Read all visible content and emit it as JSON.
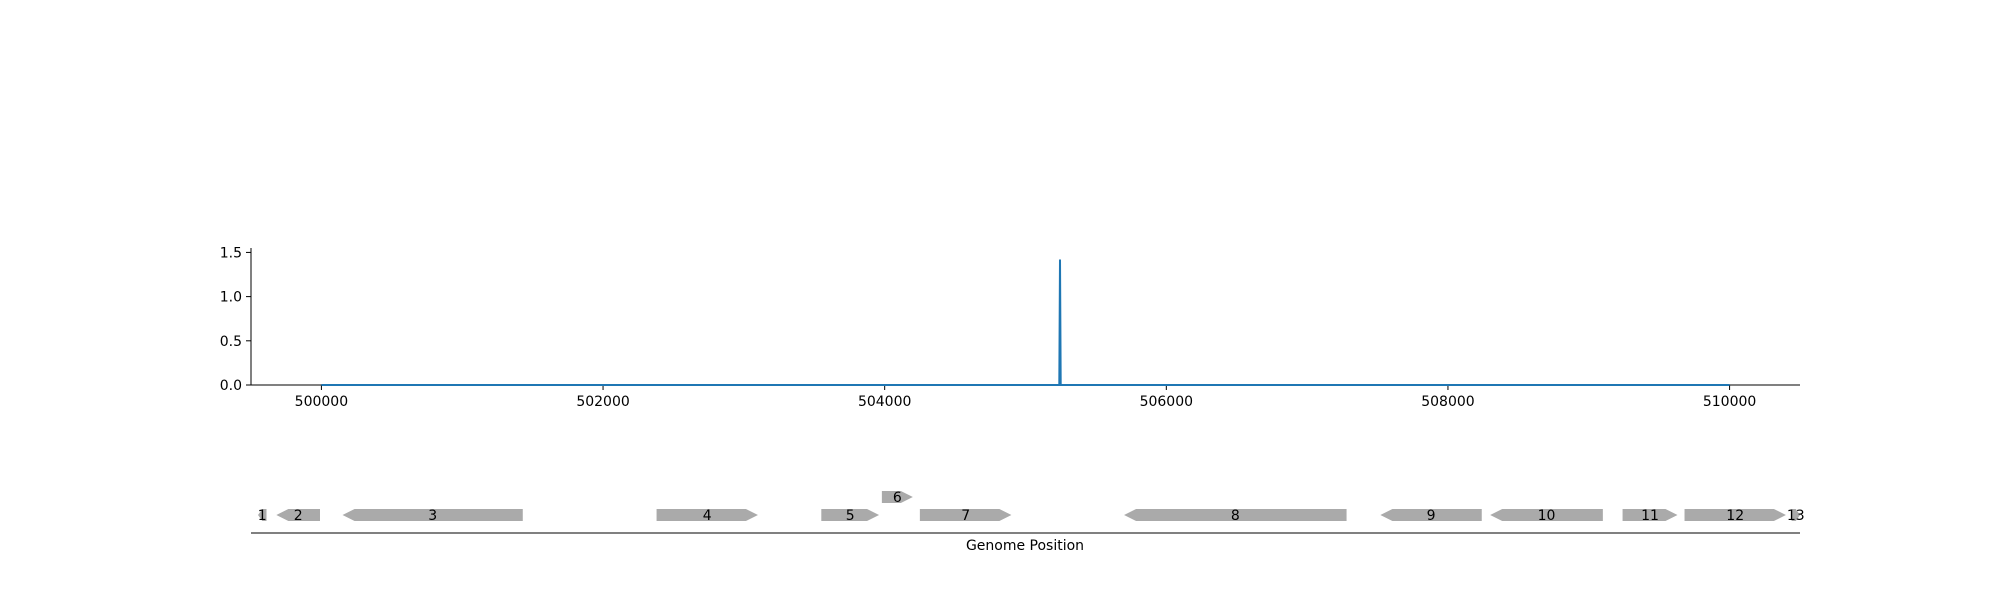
{
  "chart_data": {
    "type": "line",
    "title": "",
    "xlabel": "Genome Position",
    "ylabel": "",
    "xlim": [
      499500,
      510500
    ],
    "ylim": [
      0,
      1.55
    ],
    "x_ticks": [
      500000,
      502000,
      504000,
      506000,
      508000,
      510000
    ],
    "y_ticks": [
      "0.0",
      "0.5",
      "1.0",
      "1.5"
    ],
    "grid": false,
    "series": [
      {
        "name": "",
        "color": "#1f77b4",
        "points": [
          [
            500000,
            0
          ],
          [
            505240,
            0
          ],
          [
            505245,
            1.42
          ],
          [
            505250,
            0
          ],
          [
            510000,
            0
          ]
        ]
      }
    ],
    "genes": [
      {
        "label": "1",
        "start": 499550,
        "end": 499610,
        "strand": "-"
      },
      {
        "label": "2",
        "start": 499680,
        "end": 499990,
        "strand": "-"
      },
      {
        "label": "3",
        "start": 500150,
        "end": 501430,
        "strand": "-"
      },
      {
        "label": "4",
        "start": 502380,
        "end": 503100,
        "strand": "+"
      },
      {
        "label": "5",
        "start": 503550,
        "end": 503960,
        "strand": "+"
      },
      {
        "label": "6",
        "start": 503980,
        "end": 504200,
        "strand": "+",
        "track": 2
      },
      {
        "label": "7",
        "start": 504250,
        "end": 504900,
        "strand": "+"
      },
      {
        "label": "8",
        "start": 505700,
        "end": 507280,
        "strand": "-"
      },
      {
        "label": "9",
        "start": 507520,
        "end": 508240,
        "strand": "-"
      },
      {
        "label": "10",
        "start": 508300,
        "end": 509100,
        "strand": "-"
      },
      {
        "label": "11",
        "start": 509240,
        "end": 509630,
        "strand": "+"
      },
      {
        "label": "12",
        "start": 509680,
        "end": 510400,
        "strand": "+"
      },
      {
        "label": "13",
        "start": 510440,
        "end": 510500,
        "strand": "+"
      }
    ],
    "gene_color": "#aaaaaa"
  }
}
